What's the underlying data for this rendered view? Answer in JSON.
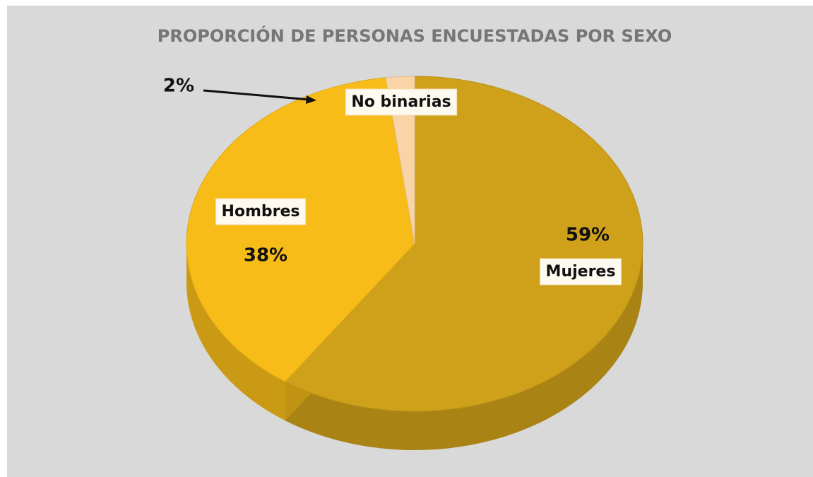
{
  "chart_data": {
    "type": "pie",
    "title": "PROPORCIÓN DE PERSONAS ENCUESTADAS POR SEXO",
    "categories": [
      "Mujeres",
      "Hombres",
      "No binarias"
    ],
    "values": [
      59,
      38,
      2
    ],
    "value_labels": [
      "59%",
      "38%",
      "2%"
    ],
    "colors": [
      "#cfa01a",
      "#f7bc18",
      "#f8d4a6"
    ]
  }
}
